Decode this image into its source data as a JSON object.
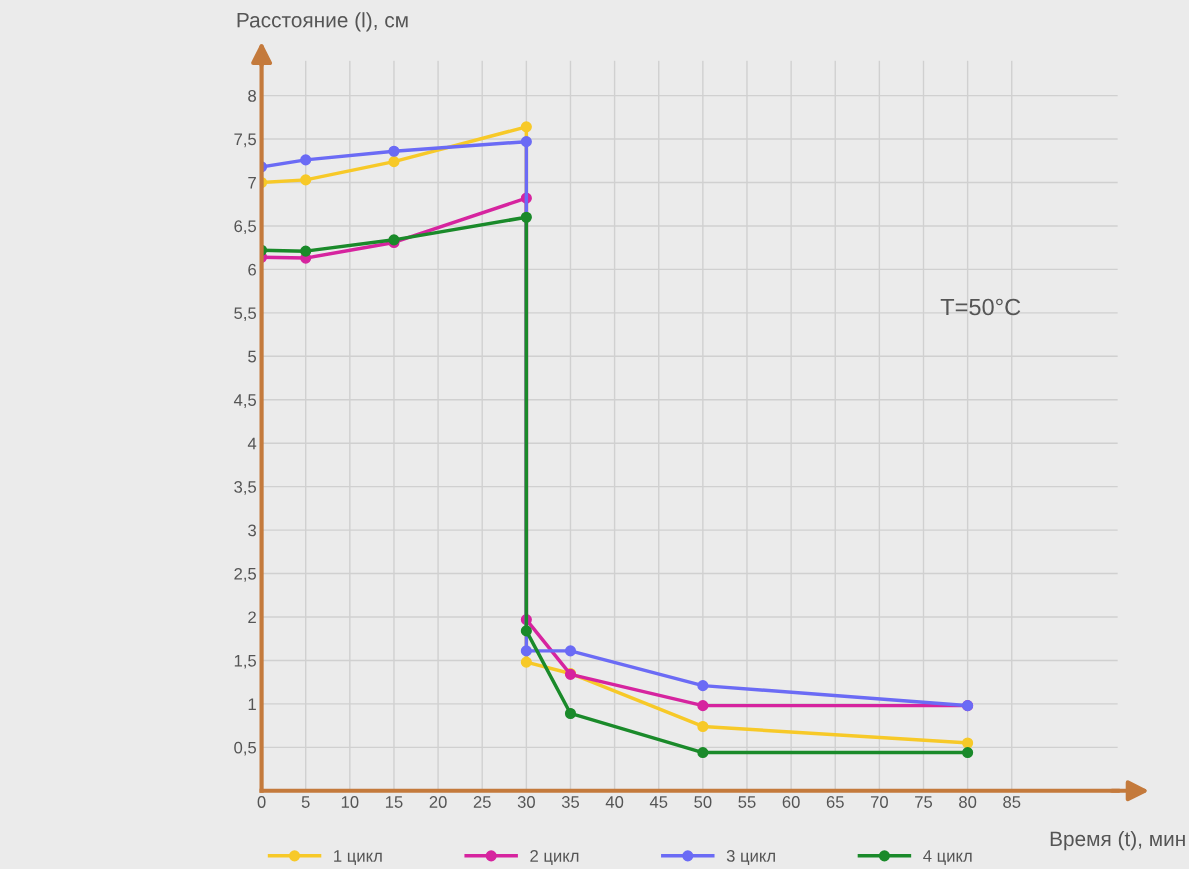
{
  "chart_data": {
    "type": "line",
    "xlabel": "Время (t), мин",
    "ylabel": "Расстояние (l), см",
    "annotations": [
      "T=50°C"
    ],
    "xlim": [
      0,
      97
    ],
    "ylim": [
      0,
      8.4
    ],
    "xticks": [
      0,
      5,
      10,
      15,
      20,
      25,
      30,
      35,
      40,
      45,
      50,
      55,
      60,
      65,
      70,
      75,
      80,
      85
    ],
    "yticks": [
      {
        "value": 0.5,
        "label": "0,5"
      },
      1,
      {
        "value": 1.5,
        "label": "1,5"
      },
      2,
      {
        "value": 2.5,
        "label": "2,5"
      },
      3,
      {
        "value": 3.5,
        "label": "3,5"
      },
      4,
      {
        "value": 4.5,
        "label": "4,5"
      },
      5,
      {
        "value": 5.5,
        "label": "5,5"
      },
      6,
      {
        "value": 6.5,
        "label": "6,5"
      },
      7,
      {
        "value": 7.5,
        "label": "7,5"
      },
      8
    ],
    "grid": true,
    "legend": "bottom",
    "marker": "circle",
    "line_style": "solid",
    "series": [
      {
        "name": "1 цикл",
        "color": "#f7c928",
        "x": [
          0,
          5,
          15,
          30,
          30,
          35,
          50,
          80
        ],
        "values": [
          7.0,
          7.03,
          7.24,
          7.64,
          1.48,
          1.35,
          0.74,
          0.55
        ]
      },
      {
        "name": "2 цикл",
        "color": "#d6249f",
        "x": [
          0,
          5,
          15,
          30,
          30,
          35,
          50,
          80
        ],
        "values": [
          6.14,
          6.13,
          6.31,
          6.82,
          1.97,
          1.34,
          0.98,
          0.98
        ]
      },
      {
        "name": "3 цикл",
        "color": "#6b6bf5",
        "x": [
          0,
          5,
          15,
          30,
          30,
          35,
          50,
          80
        ],
        "values": [
          7.18,
          7.26,
          7.36,
          7.47,
          1.61,
          1.61,
          1.21,
          0.98
        ]
      },
      {
        "name": "4 цикл",
        "color": "#1a8a2a",
        "x": [
          0,
          5,
          15,
          30,
          30,
          35,
          50,
          80
        ],
        "values": [
          6.22,
          6.21,
          6.34,
          6.6,
          1.84,
          0.89,
          0.44,
          0.44
        ]
      }
    ]
  }
}
